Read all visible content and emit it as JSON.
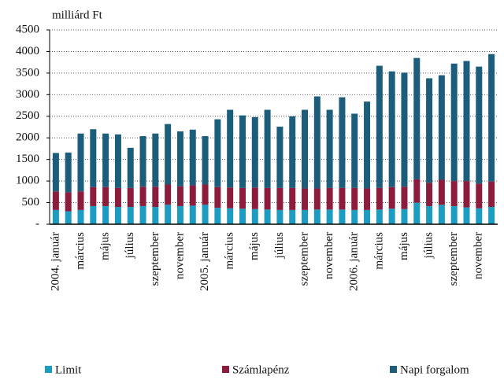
{
  "chart_data": {
    "type": "stacked_bar",
    "ylabel": "milliárd Ft",
    "categories": [
      "2004. január",
      null,
      "március",
      null,
      "május",
      null,
      "július",
      null,
      "szeptember",
      null,
      "november",
      null,
      "2005. január",
      null,
      "március",
      null,
      "május",
      null,
      "július",
      null,
      "szeptember",
      null,
      "november",
      null,
      "2006. január",
      null,
      "március",
      null,
      "május",
      null,
      "július",
      null,
      "szeptember",
      null,
      "november",
      null
    ],
    "series": [
      {
        "name": "Limit",
        "color": "#1c9cc0",
        "values": [
          330,
          300,
          330,
          420,
          420,
          400,
          400,
          420,
          400,
          450,
          420,
          430,
          450,
          380,
          370,
          360,
          350,
          340,
          330,
          330,
          330,
          340,
          340,
          340,
          330,
          330,
          340,
          360,
          350,
          500,
          420,
          450,
          420,
          390,
          370,
          400
        ]
      },
      {
        "name": "Számlapénz",
        "color": "#8c1c3c",
        "values": [
          430,
          440,
          430,
          440,
          440,
          440,
          440,
          450,
          470,
          470,
          460,
          470,
          470,
          480,
          480,
          480,
          500,
          500,
          510,
          510,
          500,
          490,
          500,
          500,
          510,
          500,
          500,
          500,
          520,
          540,
          540,
          580,
          580,
          610,
          570,
          590
        ]
      },
      {
        "name": "Napi forgalom",
        "color": "#1d5d7c",
        "values": [
          890,
          920,
          1340,
          1340,
          1240,
          1240,
          930,
          1170,
          1230,
          1400,
          1270,
          1290,
          1120,
          1570,
          1800,
          1680,
          1630,
          1810,
          1420,
          1660,
          1820,
          2130,
          1810,
          2100,
          1720,
          2010,
          2830,
          2680,
          2640,
          2810,
          2420,
          2420,
          2720,
          2780,
          2710,
          2950
        ]
      }
    ],
    "ylim": [
      0,
      4500
    ],
    "yticks": [
      {
        "value": 0,
        "label": "-"
      },
      500,
      1000,
      1500,
      2000,
      2500,
      3000,
      3500,
      4000,
      4500
    ],
    "grid": true
  }
}
